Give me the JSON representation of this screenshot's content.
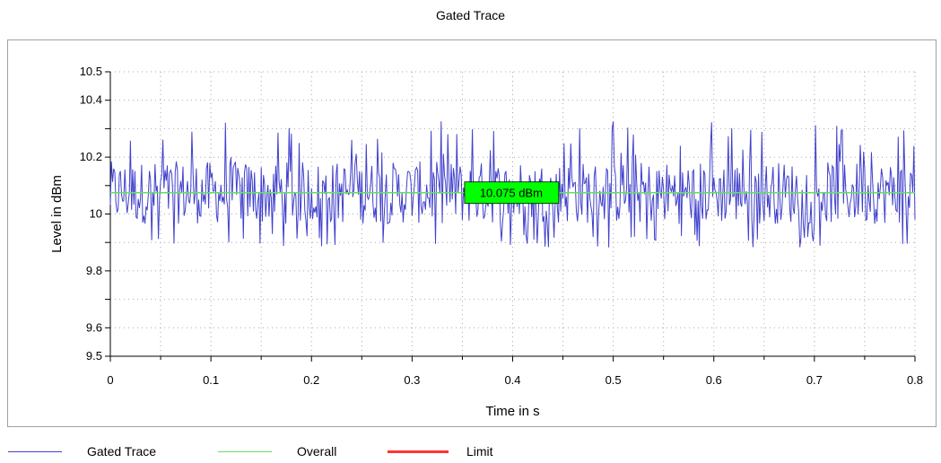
{
  "title": "Gated Trace",
  "chart_data": {
    "type": "line",
    "title": "Gated Trace",
    "xlabel": "Time in s",
    "ylabel": "Level in dBm",
    "xlim": [
      0,
      0.8
    ],
    "ylim": [
      9.5,
      10.5
    ],
    "x_ticks": [
      "0",
      "0.1",
      "0.2",
      "0.3",
      "0.4",
      "0.5",
      "0.6",
      "0.7",
      "0.8"
    ],
    "y_ticks": [
      "9.5",
      "9.6",
      "9.8",
      "10",
      "10.2",
      "10.4",
      "10.5"
    ],
    "grid": true,
    "legend_position": "bottom",
    "series": [
      {
        "name": "Gated Trace",
        "color": "#4040cc",
        "description_values": {
          "mean": 10.075,
          "min_approx": 9.88,
          "max_approx": 10.33
        }
      },
      {
        "name": "Overall",
        "color": "#66dd66",
        "values": [
          10.075
        ]
      },
      {
        "name": "Limit",
        "color": "#ff3333"
      }
    ],
    "annotations": [
      {
        "text": "10.075 dBm",
        "x": 0.395,
        "y": 10.075,
        "bg": "#00ff00"
      }
    ]
  },
  "legend": [
    {
      "label": "Gated Trace",
      "color": "#4040cc"
    },
    {
      "label": "Overall",
      "color": "#66dd66"
    },
    {
      "label": "Limit",
      "color": "#ff3333"
    }
  ]
}
